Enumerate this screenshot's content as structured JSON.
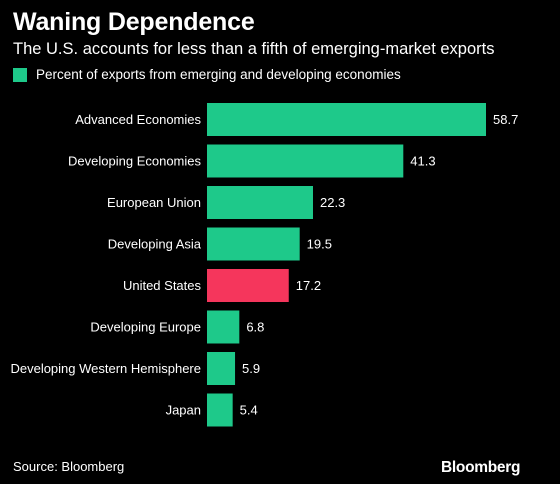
{
  "title": "Waning Dependence",
  "subtitle": "The U.S. accounts for less than a fifth of emerging-market exports",
  "source": "Source: Bloomberg",
  "brand": "Bloomberg",
  "colors": {
    "background": "#000000",
    "bar": "#1ec98a",
    "highlight": "#f5365c",
    "text": "#ffffff"
  },
  "chart_data": {
    "type": "bar",
    "orientation": "horizontal",
    "legend": "top-left",
    "grid": false,
    "categories": [
      "Advanced Economies",
      "Developing Economies",
      "European Union",
      "Developing Asia",
      "United States",
      "Developing Europe",
      "Developing Western Hemisphere",
      "Japan"
    ],
    "series": [
      {
        "name": "Percent of exports from emerging and developing economies",
        "values": [
          58.7,
          41.3,
          22.3,
          19.5,
          17.2,
          6.8,
          5.9,
          5.4
        ]
      }
    ],
    "value_labels": [
      "58.7",
      "41.3",
      "22.3",
      "19.5",
      "17.2",
      "6.8",
      "5.9",
      "5.4"
    ],
    "highlight_category": "United States",
    "xlim": [
      0,
      58.7
    ]
  }
}
